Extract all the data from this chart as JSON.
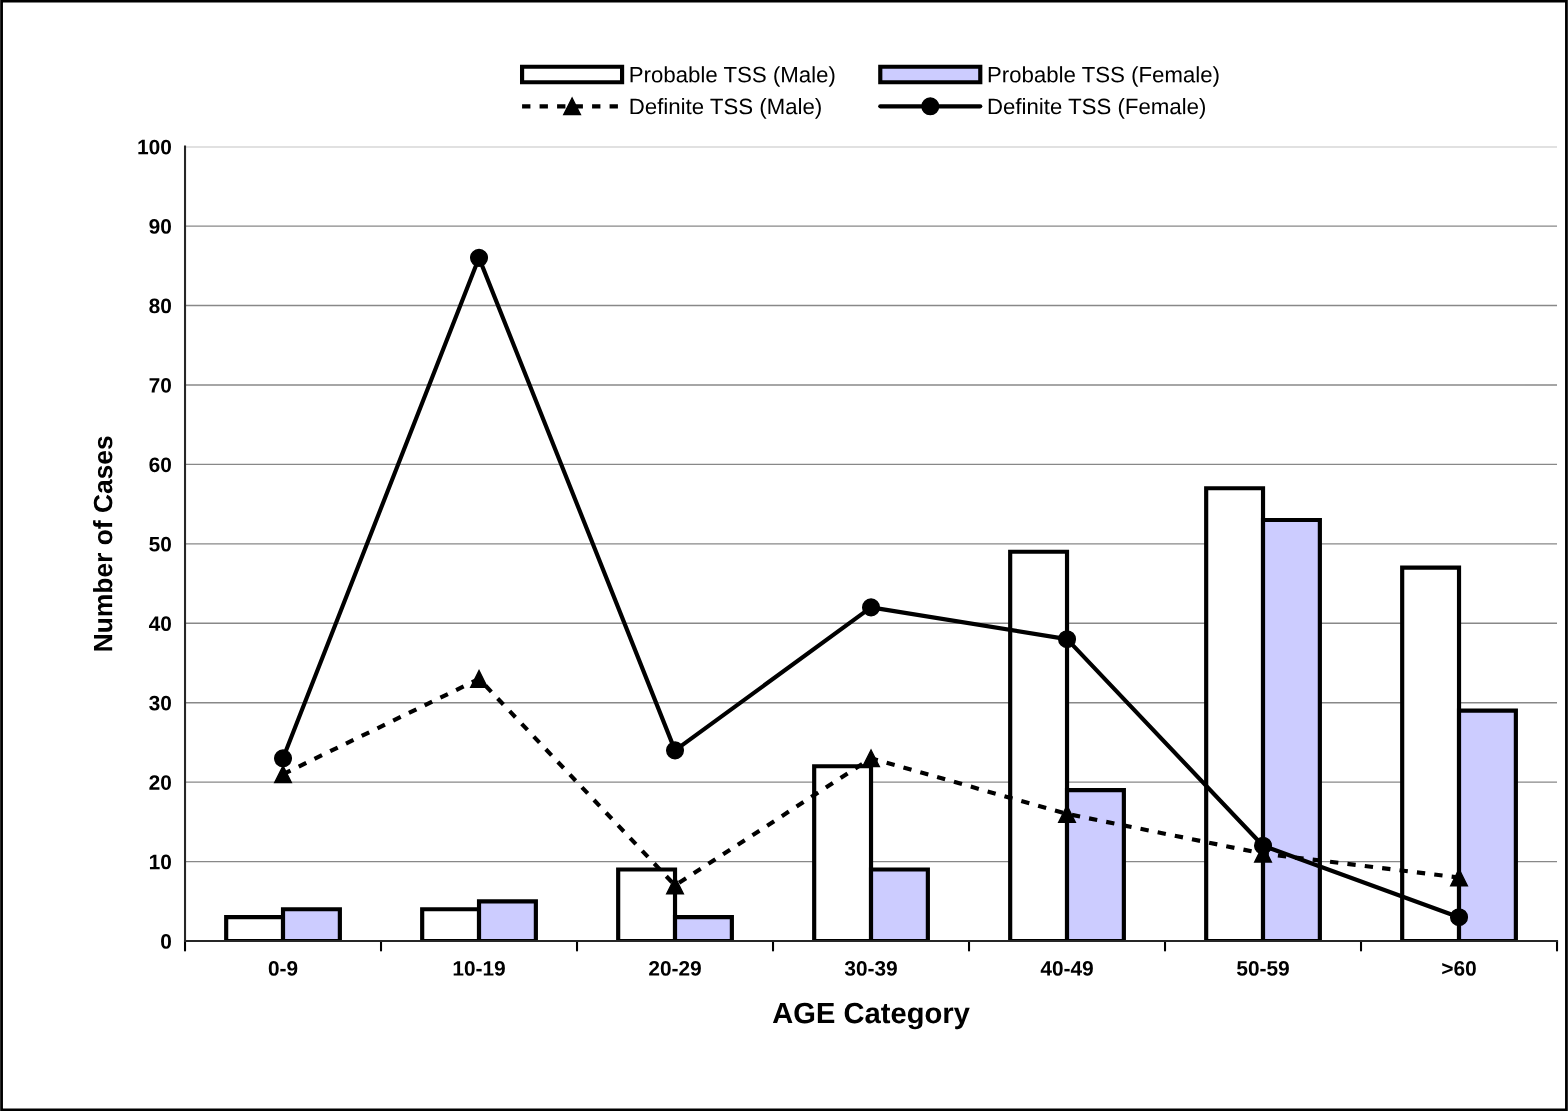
{
  "chart_data": {
    "type": "bar",
    "xlabel": "AGE Category",
    "ylabel": "Number of Cases",
    "categories": [
      "0-9",
      "10-19",
      "20-29",
      "30-39",
      "40-49",
      "50-59",
      ">60"
    ],
    "series": [
      {
        "name": "Probable TSS (Male)",
        "color": "#ffffff",
        "values": [
          3,
          4,
          9,
          22,
          49,
          57,
          47
        ]
      },
      {
        "name": "Probable TSS (Female)",
        "color": "#ccccff",
        "values": [
          4,
          5,
          3,
          9,
          19,
          53,
          29
        ]
      },
      {
        "name": "Definite TSS (Male)",
        "type": "line",
        "color": "#000000",
        "marker": "triangle",
        "line_style": "dashed",
        "values": [
          21,
          33,
          7,
          23,
          16,
          11,
          8
        ]
      },
      {
        "name": "Definite TSS (Female)",
        "type": "line",
        "color": "#000000",
        "marker": "circle",
        "line_style": "solid",
        "values": [
          23,
          86,
          24,
          42,
          38,
          12,
          3
        ]
      }
    ],
    "ylim": [
      0,
      100
    ],
    "yticks": [
      0,
      10,
      20,
      30,
      40,
      50,
      60,
      70,
      80,
      90,
      100
    ],
    "grid": "y",
    "legend": "top"
  }
}
